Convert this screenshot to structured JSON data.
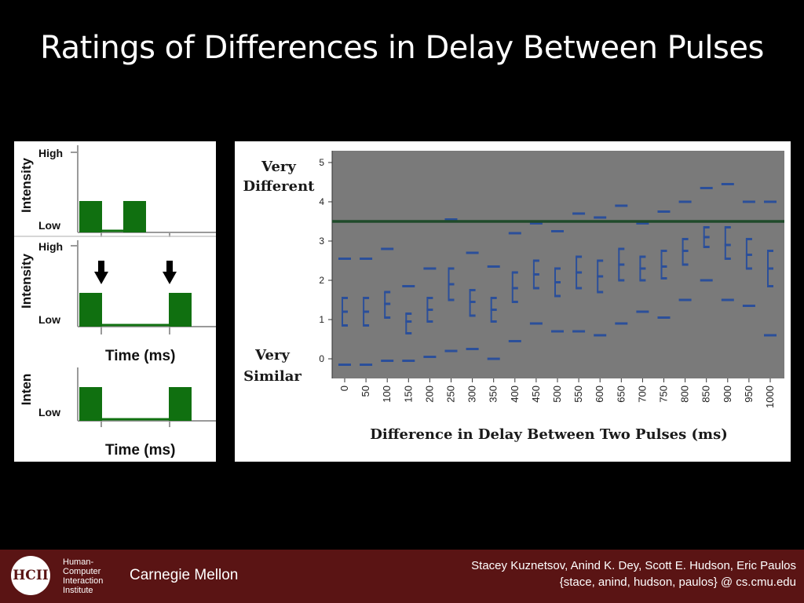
{
  "slide": {
    "title": "Ratings of Differences in Delay Between Pulses"
  },
  "diagram": {
    "y_high": "High",
    "y_low": "Low",
    "intensity": "Intensity",
    "intensity_cropped": "Inten",
    "time_label": "Time (ms)",
    "pulse_color": "#107010"
  },
  "chart_data": {
    "type": "scatter",
    "xlabel": "Difference in Delay Between Two Pulses (ms)",
    "y_top_label": [
      "Very",
      "Different"
    ],
    "y_bottom_label": [
      "Very",
      "Similar"
    ],
    "categories": [
      "0",
      "50",
      "100",
      "150",
      "200",
      "250",
      "300",
      "350",
      "400",
      "450",
      "500",
      "550",
      "600",
      "650",
      "700",
      "750",
      "800",
      "850",
      "900",
      "950",
      "1000"
    ],
    "yticks": [
      0,
      1,
      2,
      3,
      4,
      5
    ],
    "ylim": [
      -0.5,
      5.3
    ],
    "reference_line": 3.5,
    "series": [
      {
        "values": [
          2.55,
          2.55,
          2.8,
          1.85,
          2.3,
          3.55,
          2.7,
          2.35,
          3.2,
          3.45,
          3.25,
          3.7,
          3.6,
          3.9,
          3.45,
          3.75,
          4.0,
          4.35,
          4.45,
          4.0,
          4.0
        ]
      },
      {
        "values": [
          1.55,
          1.55,
          1.7,
          1.15,
          1.55,
          2.3,
          1.75,
          1.55,
          2.2,
          2.5,
          2.3,
          2.6,
          2.5,
          2.8,
          2.6,
          2.75,
          3.05,
          3.35,
          3.35,
          3.05,
          2.75
        ]
      },
      {
        "values": [
          1.2,
          1.2,
          1.4,
          0.95,
          1.25,
          1.9,
          1.45,
          1.25,
          1.8,
          2.15,
          1.95,
          2.2,
          2.1,
          2.4,
          2.3,
          2.35,
          2.75,
          3.1,
          2.9,
          2.65,
          2.3
        ]
      },
      {
        "values": [
          0.85,
          0.85,
          1.05,
          0.65,
          0.95,
          1.5,
          1.1,
          0.95,
          1.45,
          1.8,
          1.6,
          1.8,
          1.7,
          2.0,
          2.0,
          2.05,
          2.4,
          2.85,
          2.55,
          2.3,
          1.85
        ]
      },
      {
        "values": [
          -0.15,
          -0.15,
          -0.05,
          -0.05,
          0.05,
          0.2,
          0.25,
          0.0,
          0.45,
          0.9,
          0.7,
          0.7,
          0.6,
          0.9,
          1.2,
          1.05,
          1.5,
          2.0,
          1.5,
          1.35,
          0.6
        ]
      }
    ],
    "colors": {
      "marks": "#2b4f9a",
      "reference": "#1f4a2a",
      "plot_bg": "#7a7a7a"
    }
  },
  "footer": {
    "logo_text": "HCII",
    "institute": [
      "Human-",
      "Computer",
      "Interaction",
      "Institute"
    ],
    "university": "Carnegie Mellon",
    "authors": "Stacey Kuznetsov, Anind K. Dey, Scott E. Hudson, Eric Paulos",
    "emails": "{stace, anind, hudson, paulos} @ cs.cmu.edu"
  }
}
